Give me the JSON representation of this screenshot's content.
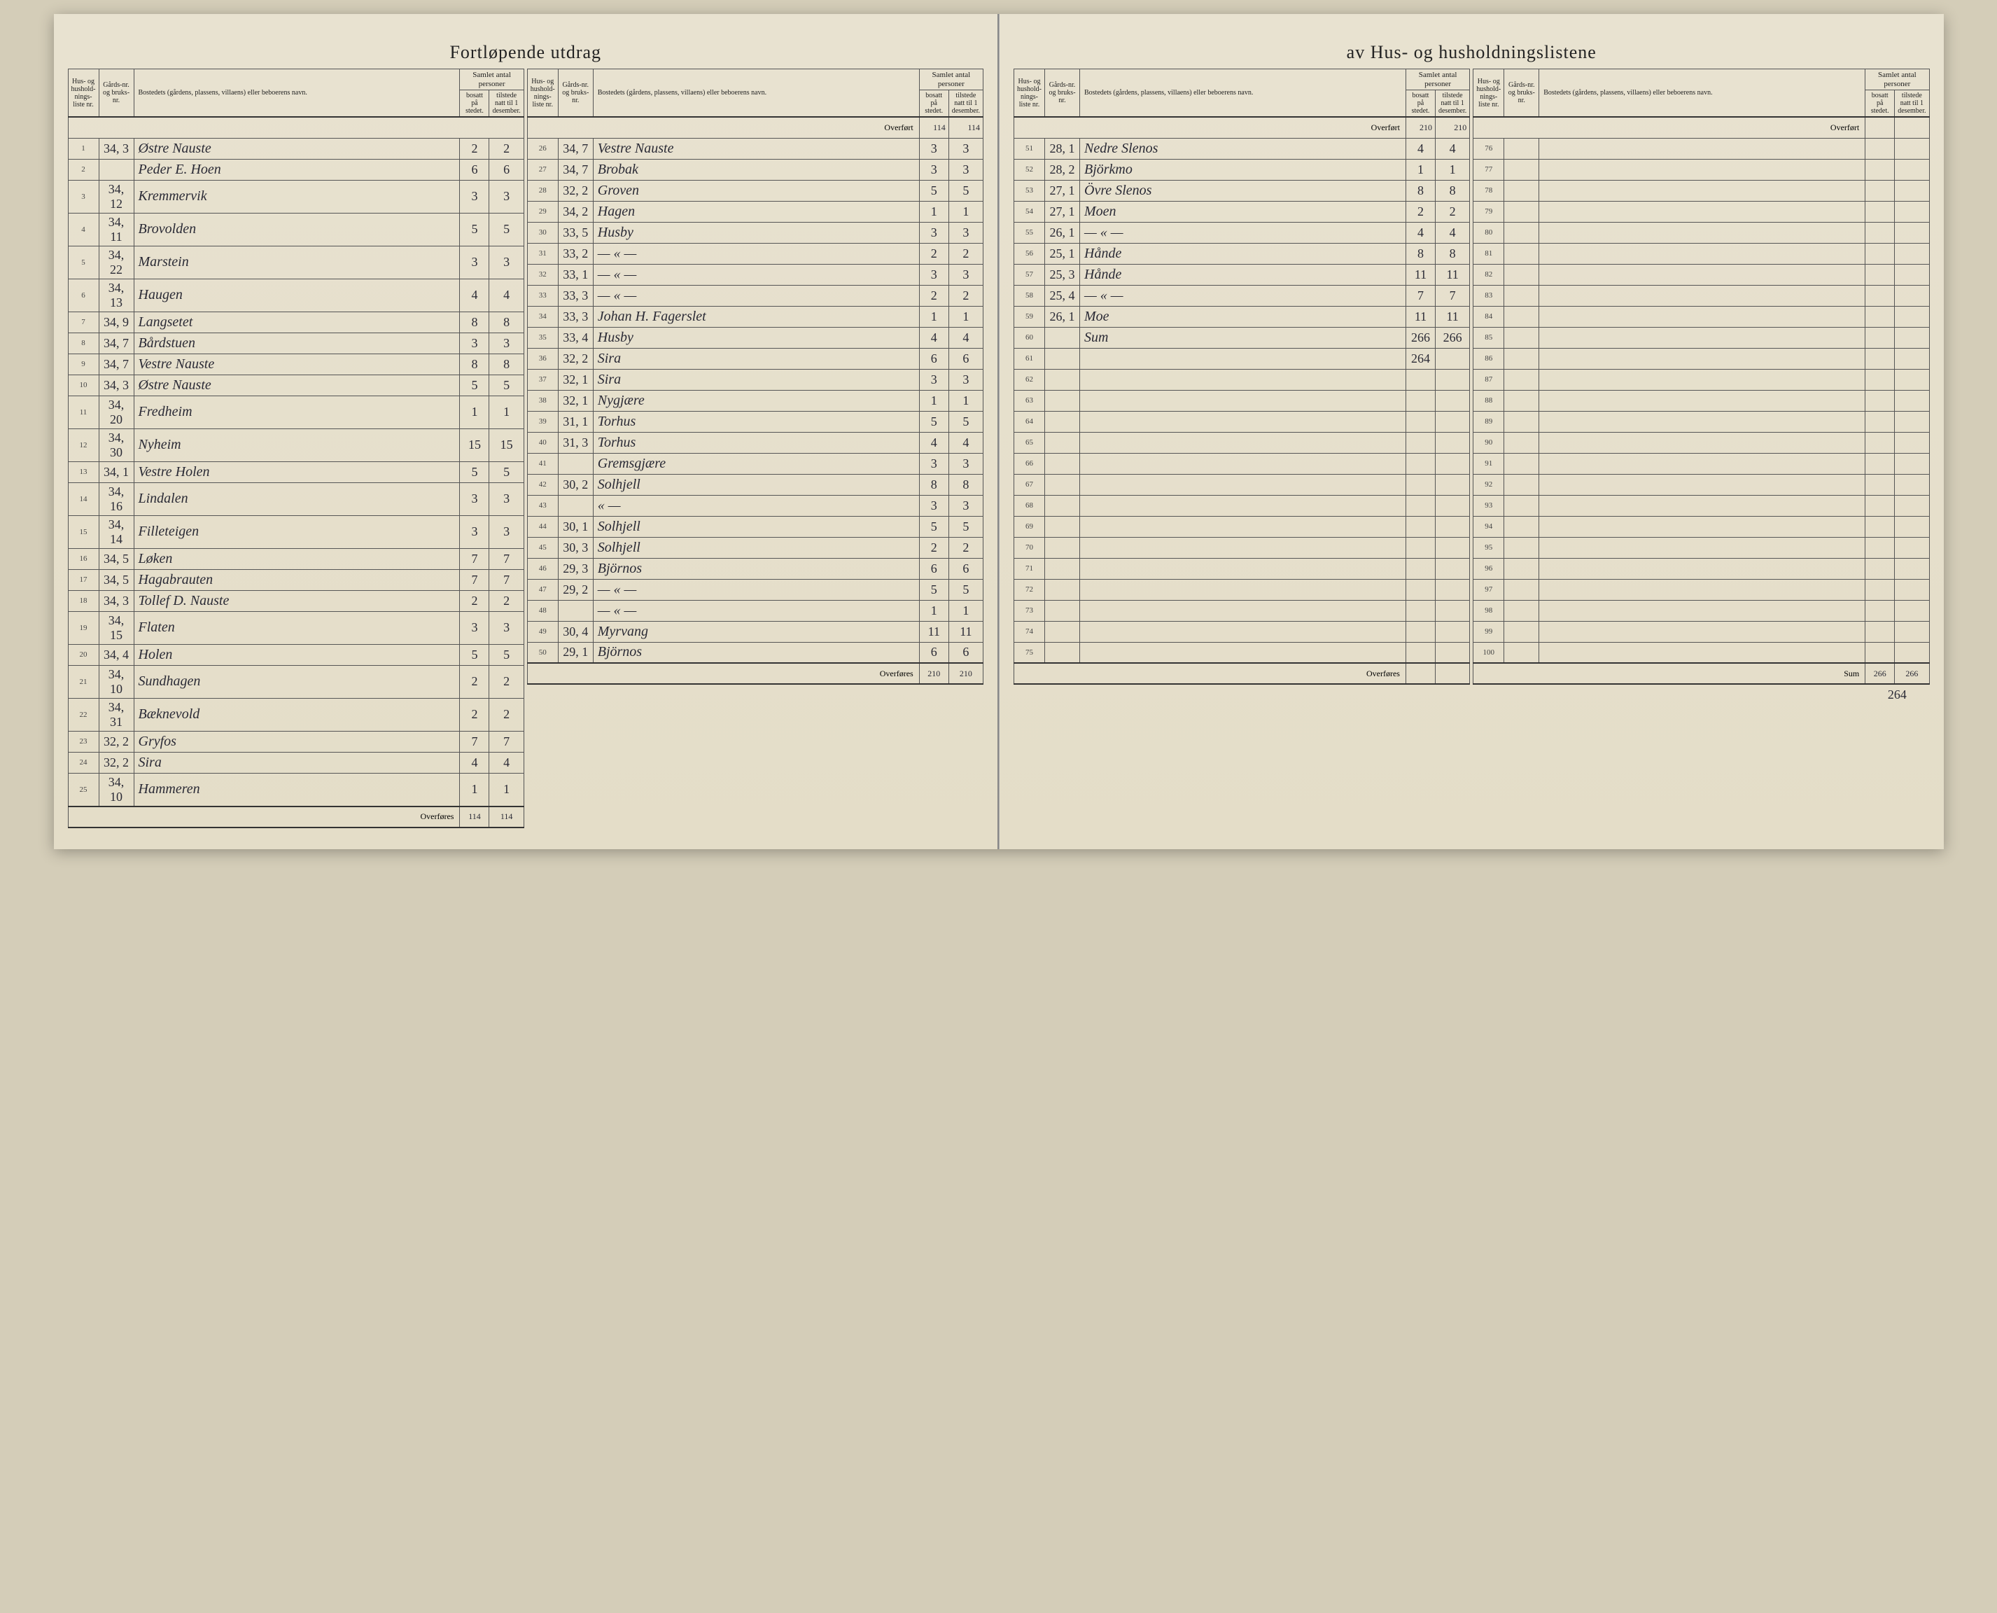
{
  "title_left": "Fortløpende utdrag",
  "title_right": "av Hus- og husholdningslistene",
  "headers": {
    "nr": "Hus- og hushold-nings-liste nr.",
    "gard": "Gårds-nr. og bruks-nr.",
    "bosted": "Bostedets (gårdens, plassens, villaens) eller beboerens navn.",
    "samlet": "Samlet antal personer",
    "bosatt": "bosatt på stedet.",
    "tilstede": "tilstede natt til 1 desember."
  },
  "labels": {
    "overfort": "Overført",
    "overfores": "Overføres",
    "sum": "Sum"
  },
  "section1": {
    "rows": [
      {
        "nr": "1",
        "gard": "34, 3",
        "name": "Østre Nauste",
        "b": "2",
        "t": "2"
      },
      {
        "nr": "2",
        "gard": "",
        "name": "Peder E. Hoen",
        "b": "6",
        "t": "6"
      },
      {
        "nr": "3",
        "gard": "34, 12",
        "name": "Kremmervik",
        "b": "3",
        "t": "3"
      },
      {
        "nr": "4",
        "gard": "34, 11",
        "name": "Brovolden",
        "b": "5",
        "t": "5"
      },
      {
        "nr": "5",
        "gard": "34, 22",
        "name": "Marstein",
        "b": "3",
        "t": "3"
      },
      {
        "nr": "6",
        "gard": "34, 13",
        "name": "Haugen",
        "b": "4",
        "t": "4"
      },
      {
        "nr": "7",
        "gard": "34, 9",
        "name": "Langsetet",
        "b": "8",
        "t": "8"
      },
      {
        "nr": "8",
        "gard": "34, 7",
        "name": "Bårdstuen",
        "b": "3",
        "t": "3"
      },
      {
        "nr": "9",
        "gard": "34, 7",
        "name": "Vestre Nauste",
        "b": "8",
        "t": "8"
      },
      {
        "nr": "10",
        "gard": "34, 3",
        "name": "Østre Nauste",
        "b": "5",
        "t": "5"
      },
      {
        "nr": "11",
        "gard": "34, 20",
        "name": "Fredheim",
        "b": "1",
        "t": "1"
      },
      {
        "nr": "12",
        "gard": "34, 30",
        "name": "Nyheim",
        "b": "15",
        "t": "15"
      },
      {
        "nr": "13",
        "gard": "34, 1",
        "name": "Vestre Holen",
        "b": "5",
        "t": "5"
      },
      {
        "nr": "14",
        "gard": "34, 16",
        "name": "Lindalen",
        "b": "3",
        "t": "3"
      },
      {
        "nr": "15",
        "gard": "34, 14",
        "name": "Filleteigen",
        "b": "3",
        "t": "3"
      },
      {
        "nr": "16",
        "gard": "34, 5",
        "name": "Løken",
        "b": "7",
        "t": "7"
      },
      {
        "nr": "17",
        "gard": "34, 5",
        "name": "Hagabrauten",
        "b": "7",
        "t": "7"
      },
      {
        "nr": "18",
        "gard": "34, 3",
        "name": "Tollef D. Nauste",
        "b": "2",
        "t": "2"
      },
      {
        "nr": "19",
        "gard": "34, 15",
        "name": "Flaten",
        "b": "3",
        "t": "3"
      },
      {
        "nr": "20",
        "gard": "34, 4",
        "name": "Holen",
        "b": "5",
        "t": "5"
      },
      {
        "nr": "21",
        "gard": "34, 10",
        "name": "Sundhagen",
        "b": "2",
        "t": "2"
      },
      {
        "nr": "22",
        "gard": "34, 31",
        "name": "Bæknevold",
        "b": "2",
        "t": "2"
      },
      {
        "nr": "23",
        "gard": "32, 2",
        "name": "Gryfos",
        "b": "7",
        "t": "7"
      },
      {
        "nr": "24",
        "gard": "32, 2",
        "name": "Sira",
        "b": "4",
        "t": "4"
      },
      {
        "nr": "25",
        "gard": "34, 10",
        "name": "Hammeren",
        "b": "1",
        "t": "1"
      }
    ],
    "overfores_b": "114",
    "overfores_t": "114"
  },
  "section2": {
    "overfort_b": "114",
    "overfort_t": "114",
    "rows": [
      {
        "nr": "26",
        "gard": "34, 7",
        "name": "Vestre Nauste",
        "b": "3",
        "t": "3"
      },
      {
        "nr": "27",
        "gard": "34, 7",
        "name": "Brobak",
        "b": "3",
        "t": "3"
      },
      {
        "nr": "28",
        "gard": "32, 2",
        "name": "Groven",
        "b": "5",
        "t": "5"
      },
      {
        "nr": "29",
        "gard": "34, 2",
        "name": "Hagen",
        "b": "1",
        "t": "1"
      },
      {
        "nr": "30",
        "gard": "33, 5",
        "name": "Husby",
        "b": "3",
        "t": "3"
      },
      {
        "nr": "31",
        "gard": "33, 2",
        "name": "— « —",
        "b": "2",
        "t": "2"
      },
      {
        "nr": "32",
        "gard": "33, 1",
        "name": "— « —",
        "b": "3",
        "t": "3"
      },
      {
        "nr": "33",
        "gard": "33, 3",
        "name": "— « —",
        "b": "2",
        "t": "2"
      },
      {
        "nr": "34",
        "gard": "33, 3",
        "name": "Johan H. Fagerslet",
        "b": "1",
        "t": "1"
      },
      {
        "nr": "35",
        "gard": "33, 4",
        "name": "Husby",
        "b": "4",
        "t": "4"
      },
      {
        "nr": "36",
        "gard": "32, 2",
        "name": "Sira",
        "b": "6",
        "t": "6"
      },
      {
        "nr": "37",
        "gard": "32, 1",
        "name": "Sira",
        "b": "3",
        "t": "3"
      },
      {
        "nr": "38",
        "gard": "32, 1",
        "name": "Nygjære",
        "b": "1",
        "t": "1"
      },
      {
        "nr": "39",
        "gard": "31, 1",
        "name": "Torhus",
        "b": "5",
        "t": "5"
      },
      {
        "nr": "40",
        "gard": "31, 3",
        "name": "Torhus",
        "b": "4",
        "t": "4"
      },
      {
        "nr": "41",
        "gard": "",
        "name": "Gremsgjære",
        "b": "3",
        "t": "3"
      },
      {
        "nr": "42",
        "gard": "30, 2",
        "name": "Solhjell",
        "b": "8",
        "t": "8"
      },
      {
        "nr": "43",
        "gard": "",
        "name": "« —",
        "b": "3",
        "t": "3"
      },
      {
        "nr": "44",
        "gard": "30, 1",
        "name": "Solhjell",
        "b": "5",
        "t": "5"
      },
      {
        "nr": "45",
        "gard": "30, 3",
        "name": "Solhjell",
        "b": "2",
        "t": "2"
      },
      {
        "nr": "46",
        "gard": "29, 3",
        "name": "Björnos",
        "b": "6",
        "t": "6"
      },
      {
        "nr": "47",
        "gard": "29, 2",
        "name": "— « —",
        "b": "5",
        "t": "5"
      },
      {
        "nr": "48",
        "gard": "",
        "name": "— « —",
        "b": "1",
        "t": "1"
      },
      {
        "nr": "49",
        "gard": "30, 4",
        "name": "Myrvang",
        "b": "11",
        "t": "11"
      },
      {
        "nr": "50",
        "gard": "29, 1",
        "name": "Björnos",
        "b": "6",
        "t": "6"
      }
    ],
    "overfores_b": "210",
    "overfores_t": "210"
  },
  "section3": {
    "overfort_b": "210",
    "overfort_t": "210",
    "rows": [
      {
        "nr": "51",
        "gard": "28, 1",
        "name": "Nedre Slenos",
        "b": "4",
        "t": "4"
      },
      {
        "nr": "52",
        "gard": "28, 2",
        "name": "Björkmo",
        "b": "1",
        "t": "1"
      },
      {
        "nr": "53",
        "gard": "27, 1",
        "name": "Övre Slenos",
        "b": "8",
        "t": "8"
      },
      {
        "nr": "54",
        "gard": "27, 1",
        "name": "Moen",
        "b": "2",
        "t": "2"
      },
      {
        "nr": "55",
        "gard": "26, 1",
        "name": "— « —",
        "b": "4",
        "t": "4"
      },
      {
        "nr": "56",
        "gard": "25, 1",
        "name": "Hånde",
        "b": "8",
        "t": "8"
      },
      {
        "nr": "57",
        "gard": "25, 3",
        "name": "Hånde",
        "b": "11",
        "t": "11"
      },
      {
        "nr": "58",
        "gard": "25, 4",
        "name": "— « —",
        "b": "7",
        "t": "7"
      },
      {
        "nr": "59",
        "gard": "26, 1",
        "name": "Moe",
        "b": "11",
        "t": "11"
      },
      {
        "nr": "60",
        "gard": "",
        "name": "Sum",
        "b": "266",
        "t": "266"
      },
      {
        "nr": "61",
        "gard": "",
        "name": "",
        "b": "264",
        "t": ""
      },
      {
        "nr": "62",
        "gard": "",
        "name": "",
        "b": "",
        "t": ""
      },
      {
        "nr": "63",
        "gard": "",
        "name": "",
        "b": "",
        "t": ""
      },
      {
        "nr": "64",
        "gard": "",
        "name": "",
        "b": "",
        "t": ""
      },
      {
        "nr": "65",
        "gard": "",
        "name": "",
        "b": "",
        "t": ""
      },
      {
        "nr": "66",
        "gard": "",
        "name": "",
        "b": "",
        "t": ""
      },
      {
        "nr": "67",
        "gard": "",
        "name": "",
        "b": "",
        "t": ""
      },
      {
        "nr": "68",
        "gard": "",
        "name": "",
        "b": "",
        "t": ""
      },
      {
        "nr": "69",
        "gard": "",
        "name": "",
        "b": "",
        "t": ""
      },
      {
        "nr": "70",
        "gard": "",
        "name": "",
        "b": "",
        "t": ""
      },
      {
        "nr": "71",
        "gard": "",
        "name": "",
        "b": "",
        "t": ""
      },
      {
        "nr": "72",
        "gard": "",
        "name": "",
        "b": "",
        "t": ""
      },
      {
        "nr": "73",
        "gard": "",
        "name": "",
        "b": "",
        "t": ""
      },
      {
        "nr": "74",
        "gard": "",
        "name": "",
        "b": "",
        "t": ""
      },
      {
        "nr": "75",
        "gard": "",
        "name": "",
        "b": "",
        "t": ""
      }
    ],
    "overfores_b": "",
    "overfores_t": ""
  },
  "section4": {
    "overfort_b": "",
    "overfort_t": "",
    "rows": [
      {
        "nr": "76"
      },
      {
        "nr": "77"
      },
      {
        "nr": "78"
      },
      {
        "nr": "79"
      },
      {
        "nr": "80"
      },
      {
        "nr": "81"
      },
      {
        "nr": "82"
      },
      {
        "nr": "83"
      },
      {
        "nr": "84"
      },
      {
        "nr": "85"
      },
      {
        "nr": "86"
      },
      {
        "nr": "87"
      },
      {
        "nr": "88"
      },
      {
        "nr": "89"
      },
      {
        "nr": "90"
      },
      {
        "nr": "91"
      },
      {
        "nr": "92"
      },
      {
        "nr": "93"
      },
      {
        "nr": "94"
      },
      {
        "nr": "95"
      },
      {
        "nr": "96"
      },
      {
        "nr": "97"
      },
      {
        "nr": "98"
      },
      {
        "nr": "99"
      },
      {
        "nr": "100"
      }
    ],
    "sum_b": "266",
    "sum_t": "266",
    "sum_note": "264"
  }
}
